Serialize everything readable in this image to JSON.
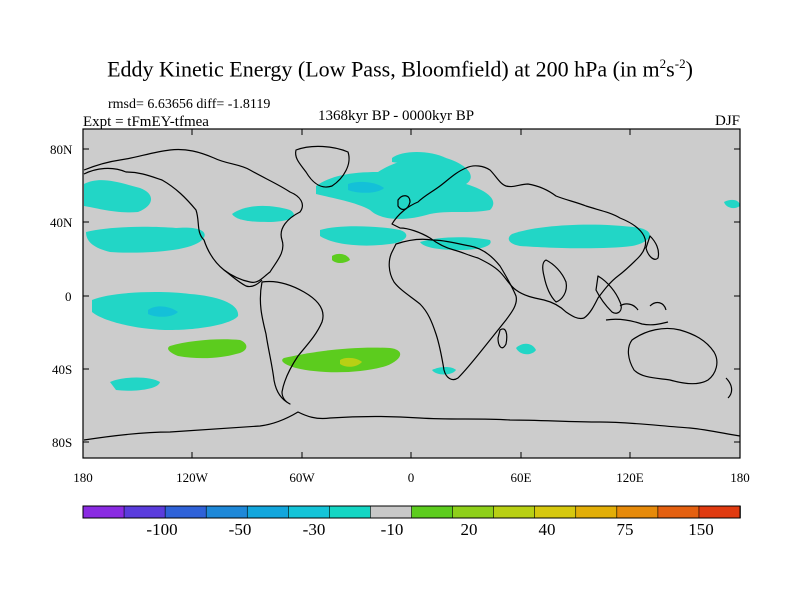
{
  "title": {
    "main": "Eddy Kinetic Energy (Low Pass, Bloomfield) at 200 hPa (in m",
    "sup1": "2",
    "mid": "s",
    "sup2": "-2",
    "close": ")"
  },
  "stats": "rmsd= 6.63656 diff= -1.8119",
  "experiment": "Expt = tFmEY-tfmea",
  "period": "1368kyr BP - 0000kyr BP",
  "season": "DJF",
  "axes": {
    "lat_labels": [
      "80N",
      "40N",
      "0",
      "40S",
      "80S"
    ],
    "lon_labels": [
      "180",
      "120W",
      "60W",
      "0",
      "60E",
      "120E",
      "180"
    ]
  },
  "colorbar": {
    "labels": [
      "-100",
      "-50",
      "-30",
      "-10",
      "20",
      "40",
      "75",
      "150"
    ],
    "colors": [
      "#8a2be2",
      "#5a3cdc",
      "#2f62d8",
      "#1e88d8",
      "#12a6dc",
      "#14c4d8",
      "#14d6c4",
      "#c8c8c8",
      "#5ccc1e",
      "#8ed01a",
      "#b8d014",
      "#d6c80e",
      "#e2ae08",
      "#e68a0a",
      "#e46010",
      "#e03a10"
    ]
  },
  "map": {
    "background_color": "#cccccc",
    "positive_color": "#5ccc1e",
    "positive_strong_color": "#b8d014",
    "negative_color": "#22d6c6",
    "negative_strong_color": "#14c0d8"
  }
}
